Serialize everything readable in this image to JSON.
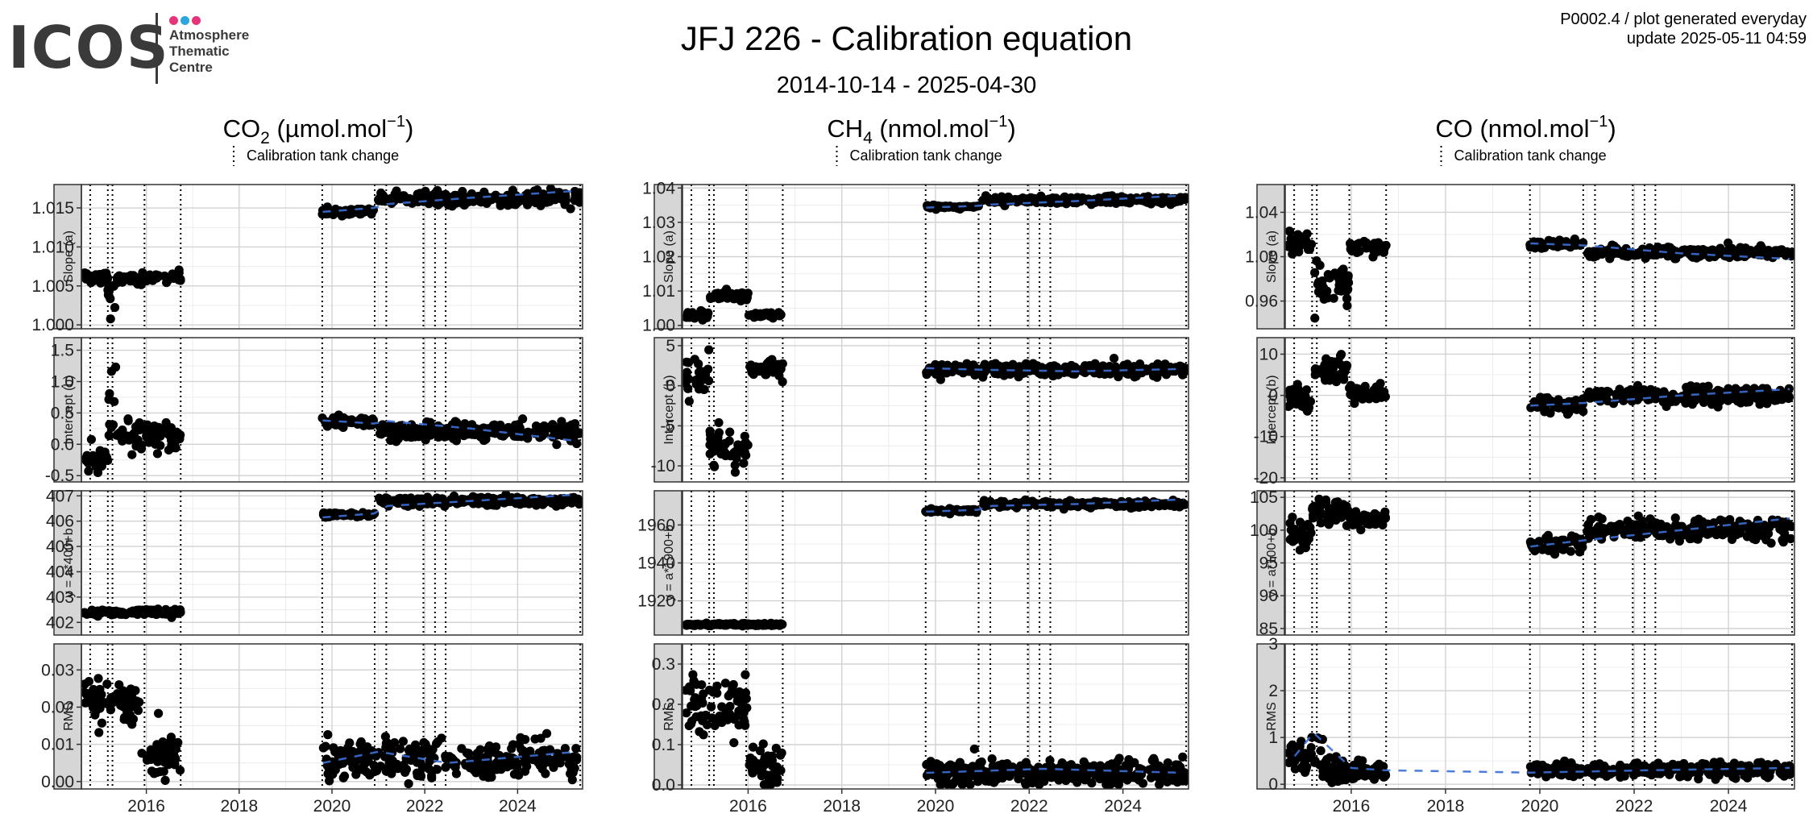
{
  "header": {
    "logo": {
      "wordmark": "ICOS",
      "lines": [
        "Atmosphere",
        "Thematic",
        "Centre"
      ],
      "dot_colors": [
        "#e6347a",
        "#2ba6de",
        "#e6347a"
      ]
    },
    "title": "JFJ 226 - Calibration equation",
    "subtitle": "2014-10-14 - 2025-04-30",
    "corner_line1": "P0002.4 / plot generated everyday",
    "corner_line2": "update  2025-05-11 04:59"
  },
  "legend_label": "Calibration tank change",
  "x_axis": {
    "xlim": [
      2014.6,
      2025.4
    ],
    "ticks": [
      2016,
      2018,
      2020,
      2022,
      2024
    ],
    "tick_labels": [
      "2016",
      "2018",
      "2020",
      "2022",
      "2024"
    ]
  },
  "tank_changes": [
    2014.79,
    2015.17,
    2015.27,
    2015.96,
    2016.74,
    2019.79,
    2020.92,
    2021.17,
    2021.97,
    2022.22,
    2022.45,
    2025.35
  ],
  "colors": {
    "points": "#000000",
    "trend": "#3b6fd6",
    "strip_fill": "#d6d6d6",
    "grid_major": "#d2d2d2",
    "grid_minor": "#ececec"
  },
  "chart_data": [
    {
      "type": "scatter",
      "species_base": "CO",
      "species_sub": "2",
      "unit": "µmol.mol",
      "unit_exp": "−1",
      "panels": [
        {
          "strip": "Slope (a)",
          "ylim": [
            0.9995,
            1.018
          ],
          "ticks": [
            1.0,
            1.005,
            1.01,
            1.015
          ],
          "tick_labels": [
            "1.000",
            "1.005",
            "1.010",
            "1.015"
          ],
          "segments": [
            [
              2014.65,
              2015.17,
              1.006,
              0.0004
            ],
            [
              2015.17,
              2015.35,
              1.0035,
              0.0012
            ],
            [
              2015.35,
              2016.74,
              1.006,
              0.0004
            ],
            [
              2019.79,
              2020.92,
              1.0145,
              0.0003
            ],
            [
              2021.0,
              2025.35,
              1.0162,
              0.0005
            ]
          ],
          "trend": [
            [
              2019.8,
              1.0145
            ],
            [
              2020.9,
              1.015
            ],
            [
              2021.2,
              1.0155
            ],
            [
              2023.0,
              1.0163
            ],
            [
              2025.3,
              1.0172
            ]
          ]
        },
        {
          "strip": "Intercept (b)",
          "ylim": [
            -0.6,
            1.7
          ],
          "ticks": [
            -0.5,
            0.0,
            0.5,
            1.0,
            1.5
          ],
          "tick_labels": [
            "-0.5",
            "0.0",
            "0.5",
            "1.0",
            "1.5"
          ],
          "segments": [
            [
              2014.65,
              2015.17,
              -0.22,
              0.12
            ],
            [
              2015.17,
              2015.35,
              0.55,
              0.45
            ],
            [
              2015.35,
              2016.74,
              0.15,
              0.13
            ],
            [
              2019.79,
              2020.92,
              0.35,
              0.05
            ],
            [
              2021.0,
              2025.35,
              0.2,
              0.08
            ]
          ],
          "trend": [
            [
              2019.8,
              0.38
            ],
            [
              2020.9,
              0.33
            ],
            [
              2021.2,
              0.37
            ],
            [
              2023.0,
              0.25
            ],
            [
              2025.3,
              0.05
            ]
          ]
        },
        {
          "strip": "y = a*400+b",
          "ylim": [
            401.5,
            407.2
          ],
          "ticks": [
            402,
            403,
            404,
            405,
            406,
            407
          ],
          "tick_labels": [
            "402",
            "403",
            "404",
            "405",
            "406",
            "407"
          ],
          "segments": [
            [
              2014.65,
              2016.74,
              402.4,
              0.08
            ],
            [
              2019.79,
              2020.92,
              406.25,
              0.06
            ],
            [
              2021.0,
              2025.35,
              406.8,
              0.1
            ]
          ],
          "trend": [
            [
              2019.8,
              406.15
            ],
            [
              2020.9,
              406.3
            ],
            [
              2021.2,
              406.6
            ],
            [
              2023.0,
              406.8
            ],
            [
              2025.3,
              407.05
            ]
          ]
        },
        {
          "strip": "RMS",
          "ylim": [
            -0.002,
            0.037
          ],
          "ticks": [
            0.0,
            0.01,
            0.02,
            0.03
          ],
          "tick_labels": [
            "0.00",
            "0.01",
            "0.02",
            "0.03"
          ],
          "segments": [
            [
              2014.65,
              2015.9,
              0.022,
              0.004
            ],
            [
              2015.9,
              2016.74,
              0.007,
              0.004
            ],
            [
              2019.79,
              2025.35,
              0.006,
              0.003
            ]
          ],
          "trend": [
            [
              2019.8,
              0.005
            ],
            [
              2021.0,
              0.008
            ],
            [
              2022.5,
              0.005
            ],
            [
              2025.3,
              0.008
            ]
          ]
        }
      ]
    },
    {
      "type": "scatter",
      "species_base": "CH",
      "species_sub": "4",
      "unit": "nmol.mol",
      "unit_exp": "−1",
      "panels": [
        {
          "strip": "Slope (a)",
          "ylim": [
            0.999,
            1.041
          ],
          "ticks": [
            1.0,
            1.01,
            1.02,
            1.03,
            1.04
          ],
          "tick_labels": [
            "1.00",
            "1.01",
            "1.02",
            "1.03",
            "1.04"
          ],
          "segments": [
            [
              2014.65,
              2015.17,
              1.003,
              0.0008
            ],
            [
              2015.17,
              2016.0,
              1.0085,
              0.001
            ],
            [
              2016.0,
              2016.74,
              1.003,
              0.0004
            ],
            [
              2019.79,
              2020.92,
              1.0345,
              0.0003
            ],
            [
              2021.0,
              2025.35,
              1.0365,
              0.0006
            ]
          ],
          "trend": [
            [
              2019.8,
              1.0343
            ],
            [
              2020.9,
              1.0348
            ],
            [
              2021.2,
              1.0352
            ],
            [
              2023.0,
              1.0362
            ],
            [
              2025.3,
              1.0378
            ]
          ]
        },
        {
          "strip": "Intercept (b)",
          "ylim": [
            -12,
            6
          ],
          "ticks": [
            -10,
            -5,
            0,
            5
          ],
          "tick_labels": [
            "-10",
            "-5",
            "0",
            "5"
          ],
          "segments": [
            [
              2014.65,
              2015.17,
              1.5,
              1.6
            ],
            [
              2015.17,
              2016.0,
              -7.5,
              2.0
            ],
            [
              2016.0,
              2016.74,
              2.0,
              0.7
            ],
            [
              2019.79,
              2020.92,
              2.0,
              0.5
            ],
            [
              2021.0,
              2025.35,
              2.0,
              0.5
            ]
          ],
          "trend": [
            [
              2019.8,
              2.2
            ],
            [
              2021.0,
              2.0
            ],
            [
              2023.0,
              1.8
            ],
            [
              2025.3,
              2.1
            ]
          ]
        },
        {
          "strip": "y = a*1900+b",
          "ylim": [
            1902,
            1978
          ],
          "ticks": [
            1920,
            1940,
            1960
          ],
          "tick_labels": [
            "1920",
            "1940",
            "1960"
          ],
          "segments": [
            [
              2014.65,
              2016.74,
              1907.5,
              0.4
            ],
            [
              2019.79,
              2020.92,
              1967.5,
              0.5
            ],
            [
              2021.0,
              2025.35,
              1971.0,
              1.0
            ]
          ],
          "trend": [
            [
              2019.8,
              1967
            ],
            [
              2020.9,
              1968
            ],
            [
              2021.2,
              1970
            ],
            [
              2023.0,
              1971
            ],
            [
              2025.3,
              1973.5
            ]
          ]
        },
        {
          "strip": "RMS",
          "ylim": [
            -0.01,
            0.35
          ],
          "ticks": [
            0.0,
            0.1,
            0.2,
            0.3
          ],
          "tick_labels": [
            "0.0",
            "0.1",
            "0.2",
            "0.3"
          ],
          "segments": [
            [
              2014.65,
              2016.0,
              0.2,
              0.05
            ],
            [
              2016.0,
              2016.74,
              0.05,
              0.03
            ],
            [
              2019.79,
              2025.35,
              0.03,
              0.02
            ]
          ],
          "trend": [
            [
              2019.8,
              0.03
            ],
            [
              2022.3,
              0.04
            ],
            [
              2025.3,
              0.03
            ]
          ]
        }
      ]
    },
    {
      "type": "scatter",
      "species_base": "CO",
      "species_sub": "",
      "unit": "nmol.mol",
      "unit_exp": "−1",
      "panels": [
        {
          "strip": "Slope (a)",
          "ylim": [
            0.935,
            1.065
          ],
          "ticks": [
            0.96,
            1.0,
            1.04
          ],
          "tick_labels": [
            "0.96",
            "1.00",
            "1.04"
          ],
          "segments": [
            [
              2014.65,
              2015.17,
              1.012,
              0.006
            ],
            [
              2015.17,
              2015.96,
              0.975,
              0.012
            ],
            [
              2015.96,
              2016.74,
              1.008,
              0.004
            ],
            [
              2019.79,
              2020.92,
              1.011,
              0.002
            ],
            [
              2021.0,
              2025.35,
              1.004,
              0.003
            ]
          ],
          "trend": [
            [
              2019.8,
              1.012
            ],
            [
              2021.0,
              1.01
            ],
            [
              2023.0,
              1.003
            ],
            [
              2025.3,
              0.998
            ]
          ]
        },
        {
          "strip": "Intercept (b)",
          "ylim": [
            -21,
            14
          ],
          "ticks": [
            -20,
            -10,
            0,
            10
          ],
          "tick_labels": [
            "-20",
            "-10",
            "0",
            "10"
          ],
          "segments": [
            [
              2014.65,
              2015.17,
              -1.0,
              2.0
            ],
            [
              2015.17,
              2015.96,
              6.5,
              2.5
            ],
            [
              2015.96,
              2016.74,
              0.5,
              1.2
            ],
            [
              2019.79,
              2020.92,
              -2.5,
              1.2
            ],
            [
              2021.0,
              2025.35,
              0.0,
              1.2
            ]
          ],
          "trend": [
            [
              2019.8,
              -2.5
            ],
            [
              2021.0,
              -1.8
            ],
            [
              2023.0,
              0.0
            ],
            [
              2025.3,
              1.5
            ]
          ]
        },
        {
          "strip": "y = a*100+b",
          "ylim": [
            84,
            106
          ],
          "ticks": [
            85,
            90,
            95,
            100,
            105
          ],
          "tick_labels": [
            "85",
            "90",
            "95",
            "100",
            "105"
          ],
          "segments": [
            [
              2014.65,
              2015.17,
              99.5,
              1.3
            ],
            [
              2015.17,
              2015.96,
              103.0,
              1.2
            ],
            [
              2015.96,
              2016.74,
              101.5,
              0.7
            ],
            [
              2019.79,
              2020.92,
              97.8,
              0.9
            ],
            [
              2021.0,
              2025.35,
              100.0,
              1.0
            ]
          ],
          "trend": [
            [
              2019.8,
              97.5
            ],
            [
              2021.0,
              98.5
            ],
            [
              2023.0,
              100.0
            ],
            [
              2025.3,
              101.8
            ]
          ]
        },
        {
          "strip": "RMS",
          "ylim": [
            -0.1,
            3.0
          ],
          "ticks": [
            0,
            1,
            2,
            3
          ],
          "tick_labels": [
            "0",
            "1",
            "2",
            "3"
          ],
          "segments": [
            [
              2014.65,
              2015.4,
              0.6,
              0.22
            ],
            [
              2015.4,
              2016.74,
              0.3,
              0.17
            ],
            [
              2019.79,
              2025.35,
              0.3,
              0.1
            ]
          ],
          "trend": [
            [
              2014.8,
              0.6
            ],
            [
              2015.2,
              1.1
            ],
            [
              2016.0,
              0.35
            ],
            [
              2016.7,
              0.3
            ],
            [
              2019.8,
              0.25
            ],
            [
              2022.3,
              0.3
            ],
            [
              2025.3,
              0.35
            ]
          ]
        }
      ]
    }
  ]
}
